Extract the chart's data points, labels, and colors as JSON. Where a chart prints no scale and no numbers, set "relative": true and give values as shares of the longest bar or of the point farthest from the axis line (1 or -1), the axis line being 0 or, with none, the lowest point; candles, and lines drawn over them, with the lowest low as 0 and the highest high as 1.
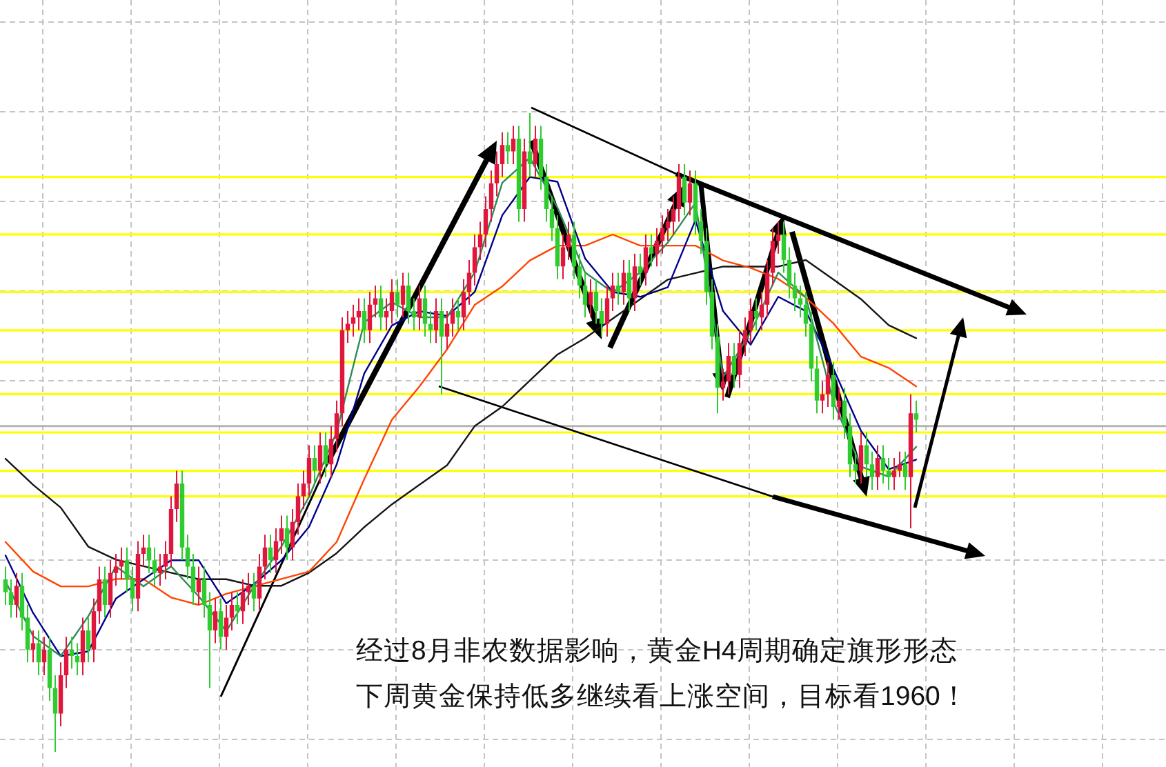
{
  "chart_data": [
    {
      "type": "candlestick",
      "relative": true,
      "grid": true,
      "categories": [
        null,
        null,
        null,
        null,
        null,
        null,
        null,
        null,
        null,
        null,
        null,
        null,
        null,
        null,
        null,
        null,
        null,
        null,
        null,
        null,
        null,
        null,
        null,
        null,
        null,
        null,
        null,
        null,
        null,
        null,
        null,
        null,
        null,
        null,
        null,
        null,
        null,
        null,
        null,
        null,
        null,
        null,
        null,
        null,
        null,
        null,
        null,
        null,
        null,
        null,
        null,
        null,
        null,
        null,
        null,
        null,
        null,
        null,
        null,
        null,
        null,
        null,
        null,
        null,
        null,
        null,
        null,
        null,
        null,
        null,
        null,
        null,
        null,
        null,
        null,
        null,
        null,
        null,
        null,
        null,
        null,
        null,
        null,
        null,
        null,
        null,
        null,
        null,
        null,
        null,
        null,
        null,
        null,
        null,
        null,
        null,
        null,
        null,
        null,
        null,
        null,
        null,
        null,
        null,
        null,
        null,
        null,
        null,
        null,
        null,
        null,
        null,
        null,
        null,
        null,
        null,
        null,
        null,
        null,
        null,
        null,
        null,
        null,
        null,
        null,
        null,
        null,
        null,
        null,
        null,
        null,
        null,
        null,
        null,
        null,
        null,
        null,
        null,
        null,
        null,
        null,
        null,
        null,
        null,
        null,
        null,
        null,
        null,
        null,
        null,
        null,
        null,
        null,
        null,
        null,
        null,
        null,
        null,
        null,
        null,
        null,
        null,
        null,
        null,
        null,
        null
      ],
      "colors": [
        "#2fcc2f",
        "#2fcc2f",
        "#e0163c",
        "#2fcc2f",
        "#2fcc2f",
        "#e0163c",
        "#2fcc2f",
        "#e0163c",
        "#2fcc2f",
        "#2fcc2f",
        "#e0163c",
        "#e0163c",
        "#2fcc2f",
        "#2fcc2f",
        "#e0163c",
        "#2fcc2f",
        "#e0163c",
        "#e0163c",
        "#2fcc2f",
        "#e0163c",
        "#e0163c",
        "#e0163c",
        "#2fcc2f",
        "#2fcc2f",
        "#e0163c",
        "#e0163c",
        "#2fcc2f",
        "#2fcc2f",
        "#e0163c",
        "#e0163c",
        "#e0163c",
        "#e0163c",
        "#2fcc2f",
        "#2fcc2f",
        "#2fcc2f",
        "#e0163c",
        "#2fcc2f",
        "#2fcc2f",
        "#e0163c",
        "#2fcc2f",
        "#e0163c",
        "#e0163c",
        "#2fcc2f",
        "#e0163c",
        "#e0163c",
        "#2fcc2f",
        "#e0163c",
        "#e0163c",
        "#2fcc2f",
        "#e0163c",
        "#e0163c",
        "#2fcc2f",
        "#e0163c",
        "#e0163c",
        "#e0163c",
        "#e0163c",
        "#2fcc2f",
        "#e0163c",
        "#2fcc2f",
        "#e0163c",
        "#e0163c",
        "#e0163c",
        "#e0163c",
        "#e0163c",
        "#e0163c",
        "#2fcc2f",
        "#e0163c",
        "#e0163c",
        "#2fcc2f",
        "#e0163c",
        "#e0163c",
        "#2fcc2f",
        "#e0163c",
        "#2fcc2f",
        "#2fcc2f",
        "#e0163c",
        "#2fcc2f",
        "#2fcc2f",
        "#e0163c",
        "#2fcc2f",
        "#e0163c",
        "#e0163c",
        "#2fcc2f",
        "#e0163c",
        "#e0163c",
        "#e0163c",
        "#e0163c",
        "#e0163c",
        "#e0163c",
        "#e0163c",
        "#e0163c",
        "#2fcc2f",
        "#e0163c",
        "#2fcc2f",
        "#e0163c",
        "#2fcc2f",
        "#e0163c",
        "#2fcc2f",
        "#2fcc2f",
        "#2fcc2f",
        "#2fcc2f",
        "#e0163c",
        "#e0163c",
        "#2fcc2f",
        "#2fcc2f",
        "#2fcc2f",
        "#e0163c",
        "#2fcc2f",
        "#2fcc2f",
        "#e0163c",
        "#e0163c",
        "#2fcc2f",
        "#e0163c",
        "#2fcc2f",
        "#e0163c",
        "#2fcc2f",
        "#e0163c",
        "#2fcc2f",
        "#e0163c",
        "#e0163c",
        "#e0163c",
        "#e0163c",
        "#e0163c",
        "#2fcc2f",
        "#e0163c",
        "#2fcc2f",
        "#2fcc2f",
        "#2fcc2f",
        "#2fcc2f",
        "#2fcc2f",
        "#e0163c",
        "#e0163c",
        "#2fcc2f",
        "#e0163c",
        "#e0163c",
        "#e0163c",
        "#2fcc2f",
        "#e0163c",
        "#e0163c",
        "#e0163c",
        "#e0163c",
        "#2fcc2f",
        "#2fcc2f",
        "#2fcc2f",
        "#2fcc2f",
        "#2fcc2f",
        "#2fcc2f",
        "#2fcc2f",
        "#e0163c",
        "#e0163c",
        "#2fcc2f",
        "#e0163c",
        "#2fcc2f",
        "#2fcc2f",
        "#2fcc2f",
        "#e0163c",
        "#2fcc2f",
        "#2fcc2f",
        "#e0163c",
        "#2fcc2f",
        "#2fcc2f",
        "#e0163c",
        "#e0163c",
        "#2fcc2f",
        "#e0163c",
        "#2fcc2f"
      ],
      "ohlc": [
        [
          0.27,
          0.29,
          0.23,
          0.25
        ],
        [
          0.25,
          0.27,
          0.21,
          0.23
        ],
        [
          0.23,
          0.28,
          0.21,
          0.26
        ],
        [
          0.26,
          0.28,
          0.19,
          0.21
        ],
        [
          0.21,
          0.23,
          0.14,
          0.16
        ],
        [
          0.16,
          0.19,
          0.14,
          0.17
        ],
        [
          0.17,
          0.19,
          0.12,
          0.14
        ],
        [
          0.14,
          0.18,
          0.12,
          0.16
        ],
        [
          0.16,
          0.18,
          0.08,
          0.1
        ],
        [
          0.1,
          0.12,
          0,
          0.06
        ],
        [
          0.06,
          0.14,
          0.04,
          0.12
        ],
        [
          0.12,
          0.18,
          0.1,
          0.16
        ],
        [
          0.16,
          0.18,
          0.13,
          0.15
        ],
        [
          0.15,
          0.17,
          0.12,
          0.14
        ],
        [
          0.14,
          0.21,
          0.12,
          0.19
        ],
        [
          0.19,
          0.21,
          0.14,
          0.16
        ],
        [
          0.16,
          0.24,
          0.14,
          0.22
        ],
        [
          0.22,
          0.29,
          0.2,
          0.27
        ],
        [
          0.27,
          0.29,
          0.21,
          0.23
        ],
        [
          0.23,
          0.3,
          0.21,
          0.28
        ],
        [
          0.28,
          0.31,
          0.26,
          0.29
        ],
        [
          0.29,
          0.32,
          0.27,
          0.3
        ],
        [
          0.3,
          0.32,
          0.25,
          0.27
        ],
        [
          0.27,
          0.29,
          0.22,
          0.24
        ],
        [
          0.24,
          0.33,
          0.22,
          0.31
        ],
        [
          0.31,
          0.34,
          0.29,
          0.32
        ],
        [
          0.32,
          0.34,
          0.28,
          0.3
        ],
        [
          0.3,
          0.32,
          0.26,
          0.28
        ],
        [
          0.28,
          0.31,
          0.26,
          0.29
        ],
        [
          0.29,
          0.33,
          0.27,
          0.31
        ],
        [
          0.31,
          0.4,
          0.29,
          0.38
        ],
        [
          0.38,
          0.44,
          0.36,
          0.42
        ],
        [
          0.42,
          0.44,
          0.3,
          0.32
        ],
        [
          0.32,
          0.34,
          0.27,
          0.29
        ],
        [
          0.29,
          0.31,
          0.23,
          0.25
        ],
        [
          0.25,
          0.29,
          0.23,
          0.27
        ],
        [
          0.27,
          0.29,
          0.21,
          0.23
        ],
        [
          0.23,
          0.25,
          0.1,
          0.19
        ],
        [
          0.19,
          0.24,
          0.17,
          0.22
        ],
        [
          0.22,
          0.24,
          0.16,
          0.18
        ],
        [
          0.18,
          0.23,
          0.16,
          0.21
        ],
        [
          0.21,
          0.25,
          0.19,
          0.23
        ],
        [
          0.23,
          0.25,
          0.2,
          0.22
        ],
        [
          0.22,
          0.27,
          0.2,
          0.25
        ],
        [
          0.25,
          0.28,
          0.23,
          0.26
        ],
        [
          0.26,
          0.28,
          0.22,
          0.24
        ],
        [
          0.24,
          0.31,
          0.22,
          0.29
        ],
        [
          0.29,
          0.34,
          0.27,
          0.32
        ],
        [
          0.32,
          0.34,
          0.28,
          0.3
        ],
        [
          0.3,
          0.35,
          0.28,
          0.33
        ],
        [
          0.33,
          0.37,
          0.31,
          0.35
        ],
        [
          0.35,
          0.37,
          0.3,
          0.32
        ],
        [
          0.32,
          0.38,
          0.3,
          0.36
        ],
        [
          0.36,
          0.42,
          0.34,
          0.4
        ],
        [
          0.4,
          0.44,
          0.38,
          0.42
        ],
        [
          0.42,
          0.48,
          0.4,
          0.46
        ],
        [
          0.46,
          0.48,
          0.42,
          0.44
        ],
        [
          0.44,
          0.5,
          0.42,
          0.48
        ],
        [
          0.48,
          0.5,
          0.43,
          0.45
        ],
        [
          0.45,
          0.51,
          0.43,
          0.49
        ],
        [
          0.49,
          0.55,
          0.47,
          0.53
        ],
        [
          0.53,
          0.68,
          0.51,
          0.66
        ],
        [
          0.66,
          0.69,
          0.64,
          0.67
        ],
        [
          0.67,
          0.7,
          0.65,
          0.68
        ],
        [
          0.68,
          0.71,
          0.66,
          0.69
        ],
        [
          0.69,
          0.71,
          0.64,
          0.66
        ],
        [
          0.66,
          0.72,
          0.64,
          0.7
        ],
        [
          0.7,
          0.73,
          0.68,
          0.71
        ],
        [
          0.71,
          0.73,
          0.66,
          0.68
        ],
        [
          0.68,
          0.71,
          0.66,
          0.69
        ],
        [
          0.69,
          0.74,
          0.67,
          0.72
        ],
        [
          0.72,
          0.74,
          0.68,
          0.7
        ],
        [
          0.7,
          0.75,
          0.68,
          0.73
        ],
        [
          0.73,
          0.75,
          0.67,
          0.69
        ],
        [
          0.69,
          0.71,
          0.66,
          0.68
        ],
        [
          0.68,
          0.73,
          0.66,
          0.71
        ],
        [
          0.71,
          0.73,
          0.65,
          0.67
        ],
        [
          0.67,
          0.69,
          0.64,
          0.66
        ],
        [
          0.66,
          0.71,
          0.64,
          0.69
        ],
        [
          0.69,
          0.71,
          0.56,
          0.65
        ],
        [
          0.65,
          0.69,
          0.63,
          0.67
        ],
        [
          0.67,
          0.71,
          0.65,
          0.69
        ],
        [
          0.69,
          0.71,
          0.66,
          0.68
        ],
        [
          0.68,
          0.74,
          0.66,
          0.72
        ],
        [
          0.72,
          0.77,
          0.7,
          0.75
        ],
        [
          0.75,
          0.81,
          0.73,
          0.79
        ],
        [
          0.79,
          0.83,
          0.77,
          0.81
        ],
        [
          0.81,
          0.87,
          0.79,
          0.85
        ],
        [
          0.85,
          0.91,
          0.83,
          0.89
        ],
        [
          0.89,
          0.94,
          0.87,
          0.92
        ],
        [
          0.92,
          0.97,
          0.9,
          0.95
        ],
        [
          0.95,
          0.97,
          0.92,
          0.94
        ],
        [
          0.94,
          0.98,
          0.92,
          0.96
        ],
        [
          0.96,
          0.98,
          0.83,
          0.85
        ],
        [
          0.85,
          0.96,
          0.83,
          0.94
        ],
        [
          0.94,
          1,
          0.9,
          0.92
        ],
        [
          0.92,
          0.98,
          0.9,
          0.96
        ],
        [
          0.96,
          0.98,
          0.88,
          0.9
        ],
        [
          0.9,
          0.92,
          0.83,
          0.85
        ],
        [
          0.85,
          0.87,
          0.8,
          0.82
        ],
        [
          0.82,
          0.84,
          0.74,
          0.76
        ],
        [
          0.76,
          0.81,
          0.74,
          0.79
        ],
        [
          0.79,
          0.83,
          0.77,
          0.81
        ],
        [
          0.81,
          0.83,
          0.74,
          0.76
        ],
        [
          0.76,
          0.78,
          0.71,
          0.73
        ],
        [
          0.73,
          0.75,
          0.68,
          0.7
        ],
        [
          0.7,
          0.74,
          0.68,
          0.72
        ],
        [
          0.72,
          0.74,
          0.67,
          0.69
        ],
        [
          0.69,
          0.71,
          0.65,
          0.67
        ],
        [
          0.67,
          0.73,
          0.65,
          0.71
        ],
        [
          0.71,
          0.75,
          0.69,
          0.73
        ],
        [
          0.73,
          0.75,
          0.7,
          0.72
        ],
        [
          0.72,
          0.77,
          0.7,
          0.75
        ],
        [
          0.75,
          0.77,
          0.69,
          0.71
        ],
        [
          0.71,
          0.78,
          0.69,
          0.76
        ],
        [
          0.76,
          0.78,
          0.73,
          0.75
        ],
        [
          0.75,
          0.81,
          0.73,
          0.79
        ],
        [
          0.79,
          0.81,
          0.76,
          0.78
        ],
        [
          0.78,
          0.82,
          0.76,
          0.8
        ],
        [
          0.8,
          0.84,
          0.78,
          0.82
        ],
        [
          0.82,
          0.85,
          0.8,
          0.83
        ],
        [
          0.83,
          0.87,
          0.81,
          0.85
        ],
        [
          0.85,
          0.92,
          0.83,
          0.9
        ],
        [
          0.9,
          0.92,
          0.84,
          0.86
        ],
        [
          0.86,
          0.91,
          0.84,
          0.89
        ],
        [
          0.89,
          0.91,
          0.81,
          0.83
        ],
        [
          0.83,
          0.85,
          0.78,
          0.8
        ],
        [
          0.8,
          0.82,
          0.7,
          0.72
        ],
        [
          0.72,
          0.74,
          0.63,
          0.65
        ],
        [
          0.65,
          0.67,
          0.53,
          0.57
        ],
        [
          0.57,
          0.6,
          0.55,
          0.58
        ],
        [
          0.58,
          0.64,
          0.56,
          0.62
        ],
        [
          0.62,
          0.64,
          0.57,
          0.59
        ],
        [
          0.59,
          0.66,
          0.57,
          0.64
        ],
        [
          0.64,
          0.68,
          0.62,
          0.66
        ],
        [
          0.66,
          0.71,
          0.64,
          0.69
        ],
        [
          0.69,
          0.71,
          0.66,
          0.68
        ],
        [
          0.68,
          0.72,
          0.66,
          0.7
        ],
        [
          0.7,
          0.77,
          0.68,
          0.75
        ],
        [
          0.75,
          0.82,
          0.73,
          0.8
        ],
        [
          0.8,
          0.83,
          0.78,
          0.81
        ],
        [
          0.81,
          0.83,
          0.75,
          0.77
        ],
        [
          0.77,
          0.79,
          0.71,
          0.73
        ],
        [
          0.73,
          0.75,
          0.69,
          0.71
        ],
        [
          0.71,
          0.73,
          0.68,
          0.7
        ],
        [
          0.7,
          0.72,
          0.65,
          0.67
        ],
        [
          0.67,
          0.69,
          0.58,
          0.6
        ],
        [
          0.6,
          0.62,
          0.53,
          0.55
        ],
        [
          0.55,
          0.58,
          0.53,
          0.56
        ],
        [
          0.56,
          0.61,
          0.54,
          0.59
        ],
        [
          0.59,
          0.61,
          0.52,
          0.54
        ],
        [
          0.54,
          0.57,
          0.52,
          0.55
        ],
        [
          0.55,
          0.57,
          0.49,
          0.51
        ],
        [
          0.51,
          0.53,
          0.43,
          0.45
        ],
        [
          0.45,
          0.47,
          0.42,
          0.44
        ],
        [
          0.44,
          0.5,
          0.42,
          0.48
        ],
        [
          0.48,
          0.5,
          0.43,
          0.45
        ],
        [
          0.45,
          0.47,
          0.41,
          0.43
        ],
        [
          0.43,
          0.48,
          0.41,
          0.46
        ],
        [
          0.46,
          0.48,
          0.42,
          0.44
        ],
        [
          0.44,
          0.46,
          0.41,
          0.43
        ],
        [
          0.43,
          0.46,
          0.41,
          0.44
        ],
        [
          0.44,
          0.47,
          0.43,
          0.45
        ],
        [
          0.45,
          0.47,
          0.41,
          0.43
        ],
        [
          0.43,
          0.56,
          0.35,
          0.53
        ],
        [
          0.53,
          0.55,
          0.5,
          0.52
        ]
      ],
      "ref_lines": [
        {
          "axis": "y",
          "value": 0.9,
          "color": "#ffff00"
        },
        {
          "axis": "y",
          "value": 0.81,
          "color": "#ffff00"
        },
        {
          "axis": "y",
          "value": 0.72,
          "color": "#ffff00"
        },
        {
          "axis": "y",
          "value": 0.66,
          "color": "#ffff00"
        },
        {
          "axis": "y",
          "value": 0.61,
          "color": "#ffff00"
        },
        {
          "axis": "y",
          "value": 0.56,
          "color": "#ffff00"
        },
        {
          "axis": "y",
          "value": 0.51,
          "color": "#b4b4b4"
        },
        {
          "axis": "y",
          "value": 0.5,
          "color": "#ffff00"
        },
        {
          "axis": "y",
          "value": 0.44,
          "color": "#ffff00"
        },
        {
          "axis": "y",
          "value": 0.4,
          "color": "#ffff00"
        }
      ],
      "annotations": [
        "经过8月非农数据影响，黄金H4周期确定旗形形态",
        "下周黄金保持低多继续看上涨空间，目标看1960！"
      ]
    },
    {
      "type": "line",
      "relative": true,
      "categories": [
        null,
        null,
        null,
        null,
        null,
        null,
        null,
        null,
        null,
        null,
        null,
        null,
        null,
        null,
        null,
        null,
        null,
        null,
        null,
        null,
        null,
        null,
        null,
        null,
        null,
        null,
        null,
        null,
        null,
        null,
        null,
        null,
        null,
        null
      ],
      "series": [
        {
          "color": "#151515",
          "values": [
            0.39,
            0.31,
            0.24,
            0.12,
            0.08,
            0.06,
            0.04,
            0.02,
            0.02,
            0,
            0,
            0.04,
            0.1,
            0.18,
            0.25,
            0.31,
            0.37,
            0.49,
            0.55,
            0.63,
            0.71,
            0.76,
            0.82,
            0.88,
            0.94,
            0.96,
            0.98,
            0.98,
            0.98,
            1,
            0.94,
            0.88,
            0.8,
            0.76
          ]
        }
      ]
    },
    {
      "type": "line",
      "relative": true,
      "categories": [
        null,
        null,
        null,
        null,
        null,
        null,
        null,
        null,
        null,
        null,
        null,
        null,
        null,
        null,
        null,
        null,
        null,
        null,
        null,
        null,
        null,
        null,
        null,
        null,
        null,
        null,
        null,
        null,
        null,
        null,
        null,
        null,
        null,
        null
      ],
      "series": [
        {
          "color": "#ff4500",
          "values": [
            0.17,
            0.09,
            0.05,
            0.05,
            0.07,
            0.07,
            0.02,
            0,
            0.03,
            0.05,
            0.07,
            0.09,
            0.17,
            0.34,
            0.5,
            0.59,
            0.69,
            0.81,
            0.86,
            0.93,
            0.97,
            0.97,
            1,
            0.97,
            0.97,
            0.97,
            0.93,
            0.91,
            0.88,
            0.83,
            0.76,
            0.67,
            0.64,
            0.59
          ]
        }
      ]
    },
    {
      "type": "line",
      "relative": true,
      "categories": [
        null,
        null,
        null,
        null,
        null,
        null,
        null,
        null,
        null,
        null,
        null,
        null,
        null,
        null,
        null,
        null,
        null,
        null,
        null,
        null,
        null,
        null,
        null,
        null,
        null,
        null,
        null,
        null,
        null,
        null,
        null,
        null,
        null,
        null
      ],
      "series": [
        {
          "color": "#00008b",
          "values": [
            0.21,
            0.09,
            0,
            0.01,
            0.12,
            0.16,
            0.2,
            0.2,
            0.11,
            0.15,
            0.2,
            0.27,
            0.4,
            0.59,
            0.69,
            0.72,
            0.71,
            0.76,
            0.92,
            1,
            0.99,
            0.83,
            0.76,
            0.75,
            0.77,
            0.91,
            0.72,
            0.65,
            0.75,
            0.72,
            0.6,
            0.47,
            0.39,
            0.41
          ]
        }
      ]
    },
    {
      "type": "line",
      "relative": true,
      "categories": [
        null,
        null,
        null,
        null,
        null,
        null,
        null,
        null,
        null,
        null,
        null,
        null,
        null,
        null,
        null,
        null,
        null,
        null,
        null,
        null,
        null,
        null,
        null,
        null,
        null,
        null,
        null,
        null,
        null,
        null,
        null,
        null,
        null,
        null
      ],
      "series": [
        {
          "color": "#2e8b57",
          "values": [
            0.15,
            0.04,
            0,
            0.08,
            0.18,
            0.14,
            0.18,
            0.12,
            0.05,
            0.14,
            0.22,
            0.32,
            0.45,
            0.67,
            0.71,
            0.68,
            0.68,
            0.77,
            0.95,
            1,
            0.9,
            0.77,
            0.73,
            0.77,
            0.83,
            0.91,
            0.56,
            0.65,
            0.77,
            0.72,
            0.51,
            0.38,
            0.36,
            0.42
          ]
        }
      ]
    }
  ]
}
